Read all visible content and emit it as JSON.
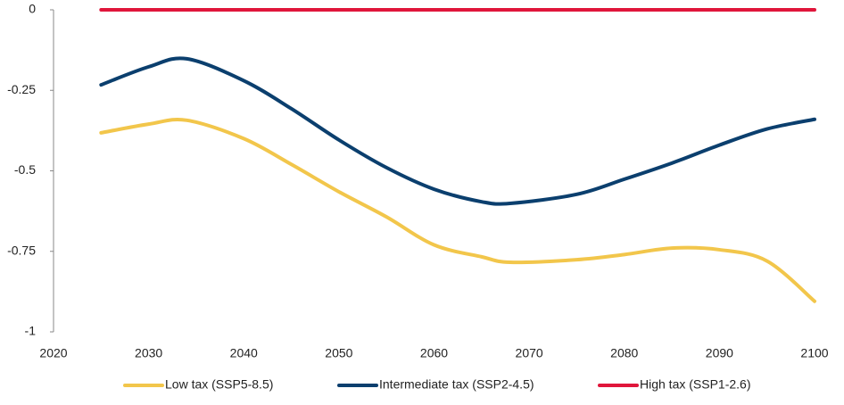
{
  "chart_data": {
    "type": "line",
    "x": [
      2025,
      2030,
      2034,
      2040,
      2045,
      2050,
      2055,
      2060,
      2065,
      2068,
      2075,
      2080,
      2085,
      2090,
      2095,
      2100
    ],
    "series": [
      {
        "name": "Low tax (SSP5-8.5)",
        "color": "#f2c64b",
        "values": [
          -0.382,
          -0.355,
          -0.343,
          -0.4,
          -0.48,
          -0.565,
          -0.643,
          -0.73,
          -0.767,
          -0.784,
          -0.776,
          -0.76,
          -0.74,
          -0.745,
          -0.78,
          -0.905
        ]
      },
      {
        "name": "Intermediate tax (SSP2-4.5)",
        "color": "#0b3f6e",
        "values": [
          -0.233,
          -0.177,
          -0.152,
          -0.22,
          -0.307,
          -0.404,
          -0.49,
          -0.557,
          -0.596,
          -0.601,
          -0.573,
          -0.526,
          -0.476,
          -0.42,
          -0.37,
          -0.34
        ]
      },
      {
        "name": "High tax (SSP1-2.6)",
        "color": "#e0163b",
        "values": [
          0,
          0,
          0,
          0,
          0,
          0,
          0,
          0,
          0,
          0,
          0,
          0,
          0,
          0,
          0,
          0
        ]
      }
    ],
    "xlim": [
      2020,
      2100
    ],
    "xticks": [
      2020,
      2030,
      2040,
      2050,
      2060,
      2070,
      2080,
      2090,
      2100
    ],
    "ylim": [
      -1,
      0
    ],
    "yticks": [
      0,
      -0.25,
      -0.5,
      -0.75,
      -1
    ],
    "grid": false,
    "legend": "bottom"
  }
}
